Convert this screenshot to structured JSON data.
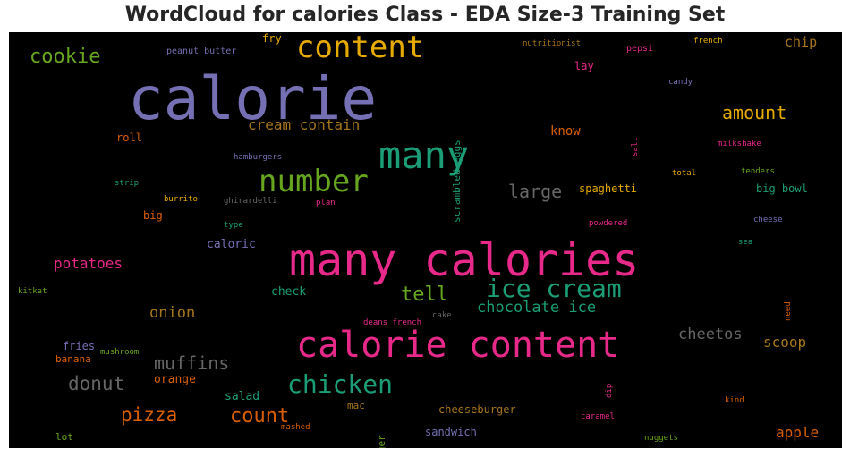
{
  "chart_data": {
    "type": "wordcloud",
    "title": "WordCloud for calories Class - EDA Size-3 Training Set",
    "background": "#000000",
    "palette": [
      "#1b9e77",
      "#d95f02",
      "#7570b3",
      "#e7298a",
      "#66a61e",
      "#e6ab02",
      "#a6761d",
      "#666666"
    ],
    "words": [
      "calorie",
      "many calories",
      "calorie content",
      "many",
      "content",
      "number",
      "ice cream",
      "chicken",
      "cookie",
      "amount",
      "large",
      "tell",
      "count",
      "pizza",
      "muffins",
      "donut",
      "chocolate ice",
      "cream contain",
      "potatoes",
      "onion",
      "cheetos",
      "scoop",
      "apple",
      "chip",
      "know",
      "caloric",
      "check",
      "salad",
      "orange",
      "cheeseburger",
      "sandwich",
      "spaghetti",
      "big bowl",
      "fries",
      "banana",
      "mac",
      "roll",
      "big",
      "fry",
      "lay",
      "scrambled eggs",
      "burger",
      "peanut butter",
      "nutritionist",
      "pepsi",
      "french",
      "candy",
      "milkshake",
      "tenders",
      "total",
      "salt",
      "hamburgers",
      "strip",
      "burrito",
      "ghirardelli",
      "plan",
      "type",
      "powdered",
      "cheese",
      "sea",
      "kitkat",
      "need",
      "deans french",
      "cake",
      "mushroom",
      "dip",
      "kind",
      "caramel",
      "mashed",
      "lot",
      "nuggets"
    ]
  }
}
